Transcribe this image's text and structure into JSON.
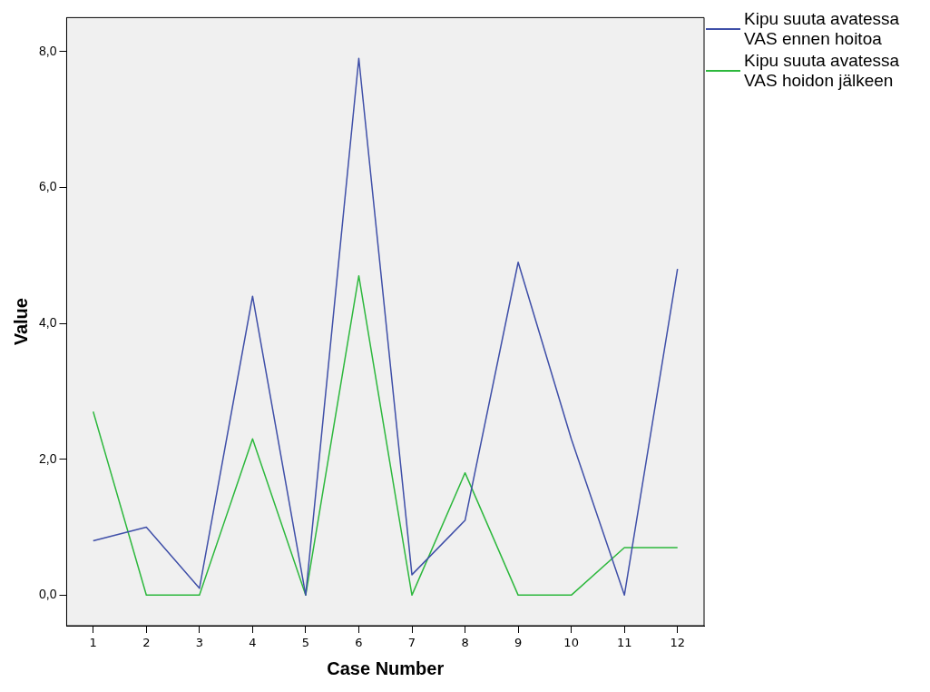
{
  "chart_data": {
    "type": "line",
    "xlabel": "Case Number",
    "ylabel": "Value",
    "categories": [
      "1",
      "2",
      "3",
      "4",
      "5",
      "6",
      "7",
      "8",
      "9",
      "10",
      "11",
      "12"
    ],
    "series": [
      {
        "name": "Kipu suuta avatessa VAS ennen hoitoa",
        "color": "#3f4fa8",
        "values": [
          0.8,
          1.0,
          0.1,
          4.4,
          0.0,
          7.9,
          0.3,
          1.1,
          4.9,
          2.3,
          0.0,
          4.8
        ]
      },
      {
        "name": "Kipu suuta avatessa VAS hoidon jälkeen",
        "color": "#2db83d",
        "values": [
          2.7,
          0.0,
          0.0,
          2.3,
          0.0,
          4.7,
          0.0,
          1.8,
          0.0,
          0.0,
          0.7,
          0.7
        ]
      }
    ],
    "ylim": [
      -0.45,
      8.5
    ],
    "yticks": [
      {
        "value": 0,
        "label": "0,0"
      },
      {
        "value": 2,
        "label": "2,0"
      },
      {
        "value": 4,
        "label": "4,0"
      },
      {
        "value": 6,
        "label": "6,0"
      },
      {
        "value": 8,
        "label": "8,0"
      }
    ],
    "grid": false,
    "legend": "top right",
    "marker": "none",
    "line_style": "solid"
  }
}
